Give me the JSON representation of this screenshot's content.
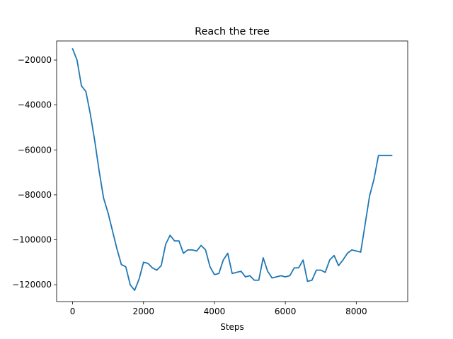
{
  "chart_data": {
    "type": "line",
    "title": "Reach the tree",
    "xlabel": "Steps",
    "ylabel": "",
    "xlim": [
      -450,
      9450
    ],
    "ylim": [
      -127500,
      -11500
    ],
    "xticks": [
      0,
      2000,
      4000,
      6000,
      8000
    ],
    "xtick_labels": [
      "0",
      "2000",
      "4000",
      "6000",
      "8000"
    ],
    "yticks": [
      -120000,
      -100000,
      -80000,
      -60000,
      -40000,
      -20000
    ],
    "ytick_labels": [
      "−120000",
      "−100000",
      "−80000",
      "−60000",
      "−40000",
      "−20000"
    ],
    "grid": false,
    "series": [
      {
        "color": "#1f77b4",
        "x": [
          0,
          125,
          250,
          375,
          500,
          625,
          750,
          875,
          1000,
          1125,
          1250,
          1375,
          1500,
          1625,
          1750,
          1875,
          2000,
          2125,
          2250,
          2375,
          2500,
          2625,
          2750,
          2875,
          3000,
          3125,
          3250,
          3375,
          3500,
          3625,
          3750,
          3875,
          4000,
          4125,
          4250,
          4375,
          4500,
          4625,
          4750,
          4875,
          5000,
          5125,
          5250,
          5375,
          5500,
          5625,
          5750,
          5875,
          6000,
          6125,
          6250,
          6375,
          6500,
          6625,
          6750,
          6875,
          7000,
          7125,
          7250,
          7375,
          7500,
          7625,
          7750,
          7875,
          8000,
          8125,
          8250,
          8375,
          8500,
          8625,
          8750,
          8875,
          9000
        ],
        "y": [
          -15000,
          -20000,
          -31500,
          -34000,
          -44000,
          -56000,
          -69500,
          -81500,
          -88000,
          -96000,
          -104000,
          -111000,
          -112000,
          -120000,
          -122500,
          -117500,
          -110000,
          -110500,
          -112500,
          -113500,
          -111500,
          -102000,
          -98000,
          -100500,
          -100500,
          -106000,
          -104500,
          -104500,
          -105000,
          -102500,
          -104500,
          -112000,
          -115500,
          -115000,
          -109000,
          -106000,
          -115000,
          -114500,
          -114000,
          -116500,
          -116000,
          -118000,
          -118000,
          -108000,
          -114000,
          -117000,
          -116500,
          -116000,
          -116500,
          -116000,
          -112500,
          -112500,
          -109000,
          -118500,
          -118000,
          -113500,
          -113500,
          -114500,
          -109000,
          -107000,
          -111500,
          -109000,
          -106000,
          -104500,
          -105000,
          -105500,
          -93000,
          -80500,
          -73000,
          -62500,
          -62500,
          -62500,
          -62500
        ]
      }
    ]
  }
}
